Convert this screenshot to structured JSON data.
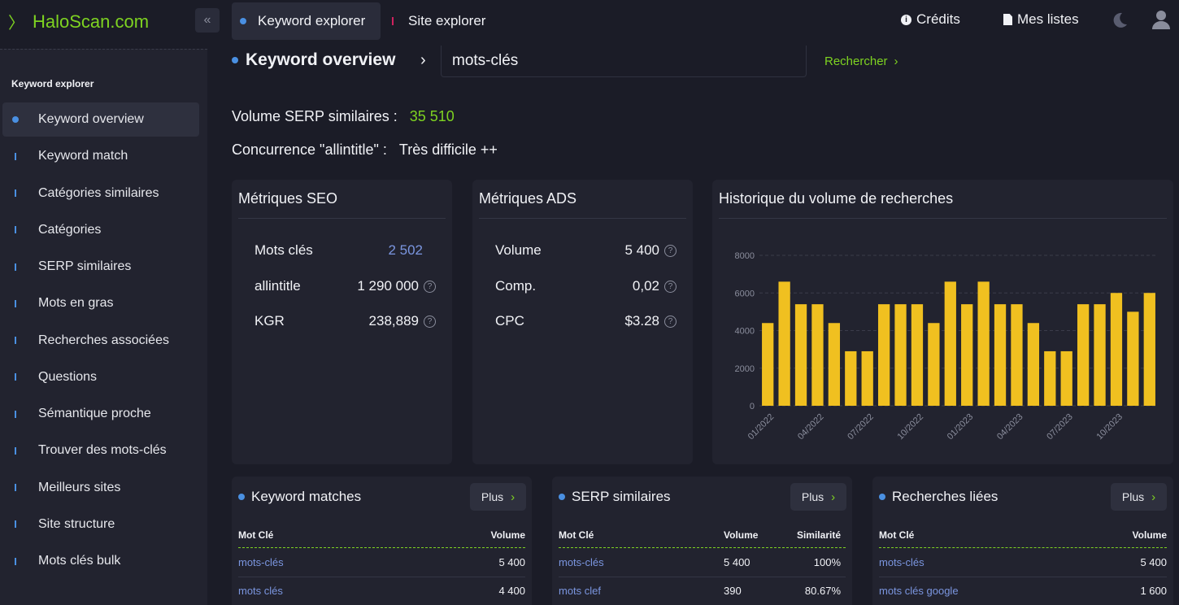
{
  "app": {
    "logo": "HaloScan.com",
    "tabs": [
      "Keyword explorer",
      "Site explorer"
    ],
    "credits_label": "Crédits",
    "lists_label": "Mes listes"
  },
  "sidebar": {
    "title": "Keyword explorer",
    "items": [
      {
        "label": "Keyword overview",
        "active": true
      },
      {
        "label": "Keyword match"
      },
      {
        "label": "Catégories similaires"
      },
      {
        "label": "Catégories"
      },
      {
        "label": "SERP similaires"
      },
      {
        "label": "Mots en gras"
      },
      {
        "label": "Recherches associées"
      },
      {
        "label": "Questions"
      },
      {
        "label": "Sémantique proche"
      },
      {
        "label": "Trouver des mots-clés"
      },
      {
        "label": "Meilleurs sites"
      },
      {
        "label": "Site structure"
      },
      {
        "label": "Mots clés bulk"
      }
    ]
  },
  "header": {
    "title": "Keyword overview",
    "search_value": "mots-clés",
    "search_button": "Rechercher"
  },
  "stats": {
    "serp_label": "Volume SERP similaires :",
    "serp_value": "35 510",
    "allintitle_label": "Concurrence \"allintitle\" :",
    "allintitle_value": "Très difficile ++"
  },
  "seo": {
    "title": "Métriques SEO",
    "rows": [
      {
        "label": "Mots clés",
        "value": "2 502"
      },
      {
        "label": "allintitle",
        "value": "1 290 000"
      },
      {
        "label": "KGR",
        "value": "238,889"
      }
    ]
  },
  "ads": {
    "title": "Métriques ADS",
    "rows": [
      {
        "label": "Volume",
        "value": "5 400"
      },
      {
        "label": "Comp.",
        "value": "0,02"
      },
      {
        "label": "CPC",
        "value": "$3.28"
      }
    ]
  },
  "history": {
    "title": "Historique du volume de recherches"
  },
  "chart_data": {
    "type": "bar",
    "title": "Historique du volume de recherches",
    "color": "#f0c020",
    "ylim": [
      0,
      8000
    ],
    "yticks": [
      0,
      2000,
      4000,
      6000,
      8000
    ],
    "xtick_labels": [
      "01/2022",
      "04/2022",
      "07/2022",
      "10/2022",
      "01/2023",
      "04/2023",
      "07/2023",
      "10/2023"
    ],
    "categories": [
      "01/2022",
      "02/2022",
      "03/2022",
      "04/2022",
      "05/2022",
      "06/2022",
      "07/2022",
      "08/2022",
      "09/2022",
      "10/2022",
      "11/2022",
      "12/2022",
      "01/2023",
      "02/2023",
      "03/2023",
      "04/2023",
      "05/2023",
      "06/2023",
      "07/2023",
      "08/2023",
      "09/2023",
      "10/2023",
      "11/2023",
      "12/2023"
    ],
    "values": [
      4400,
      6600,
      5400,
      5400,
      4400,
      2900,
      2900,
      5400,
      5400,
      5400,
      4400,
      6600,
      5400,
      6600,
      5400,
      5400,
      4400,
      2900,
      2900,
      5400,
      5400,
      6000,
      5000,
      6000
    ],
    "grid": true
  },
  "keyword_matches": {
    "title": "Keyword matches",
    "plus": "Plus",
    "headers": [
      "Mot Clé",
      "Volume"
    ],
    "rows": [
      {
        "kw": "mots-clés",
        "vol": "5 400"
      },
      {
        "kw": "mots clés",
        "vol": "4 400"
      }
    ]
  },
  "serp_similaires": {
    "title": "SERP similaires",
    "plus": "Plus",
    "headers": [
      "Mot Clé",
      "Volume",
      "Similarité"
    ],
    "rows": [
      {
        "kw": "mots-clés",
        "vol": "5 400",
        "sim": "100%"
      },
      {
        "kw": "mots clef",
        "vol": "390",
        "sim": "80.67%"
      }
    ]
  },
  "recherches_liees": {
    "title": "Recherches liées",
    "plus": "Plus",
    "headers": [
      "Mot Clé",
      "Volume"
    ],
    "rows": [
      {
        "kw": "mots-clés",
        "vol": "5 400"
      },
      {
        "kw": "mots clés google",
        "vol": "1 600"
      }
    ]
  }
}
